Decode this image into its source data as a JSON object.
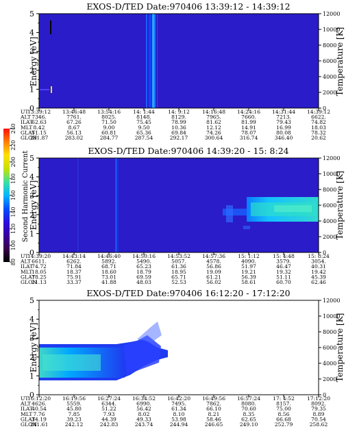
{
  "colorbar": {
    "label": "Second Harmonic Current",
    "ticks": [
      "80",
      "100",
      "120",
      "140",
      "160",
      "180",
      "200",
      "220",
      "240"
    ],
    "colors": [
      "#000000",
      "#3a0050",
      "#3a00a0",
      "#2a10e0",
      "#0050ff",
      "#00b8ff",
      "#3fe0a0",
      "#c8e000",
      "#ffe000",
      "#ff8000",
      "#ff1000"
    ]
  },
  "left_axis_label": "Energy [eV]",
  "right_axis_label": "Temperature [K]",
  "row_labels": [
    "UT",
    "ALT",
    "ILAT",
    "MLT",
    "GLAT",
    "GLON"
  ],
  "panels": [
    {
      "title": "EXOS-D/TED   Date:970406   13:39:12 - 14:39:12",
      "row_values": [
        [
          "13:39:12",
          "13:46:48",
          "13:54:16",
          "14: 1:44",
          "14: 9:12",
          "14:16:48",
          "14:24:16",
          "14:31:44",
          "14:39:12"
        ],
        [
          "7346.",
          "7761.",
          "8025.",
          "8148.",
          "8129.",
          "7965.",
          "7660.",
          "7213.",
          "6622."
        ],
        [
          "62.63",
          "67.26",
          "71.50",
          "75.45",
          "78.99",
          "81.62",
          "81.99",
          "79.43",
          "74.82"
        ],
        [
          "8.42",
          "8.67",
          "9.00",
          "9.50",
          "10.36",
          "12.12",
          "14.91",
          "16.99",
          "18.03"
        ],
        [
          "51.15",
          "56.13",
          "60.81",
          "65.36",
          "69.84",
          "74.26",
          "78.07",
          "80.08",
          "78.32"
        ],
        [
          "281.87",
          "283.02",
          "284.77",
          "287.54",
          "292.17",
          "300.64",
          "316.74",
          "346.40",
          "20.62"
        ]
      ]
    },
    {
      "title": "EXOS-D/TED   Date:970406   14:39:20 - 15: 8:24",
      "row_values": [
        [
          "14:39:20",
          "14:43:14",
          "14:46:40",
          "14:50:16",
          "14:53:52",
          "14:57:36",
          "15: 1:12",
          "15: 4:48",
          "15: 8:24"
        ],
        [
          "6611.",
          "6262.",
          "5892.",
          "5490.",
          "5057.",
          "4578.",
          "4090.",
          "3579.",
          "3054."
        ],
        [
          "74.72",
          "71.84",
          "68.71",
          "65.23",
          "61.36",
          "56.86",
          "51.97",
          "46.47",
          "40.31"
        ],
        [
          "18.05",
          "18.37",
          "18.60",
          "18.79",
          "18.95",
          "19.09",
          "19.21",
          "19.32",
          "19.42"
        ],
        [
          "78.25",
          "75.91",
          "73.01",
          "69.59",
          "65.71",
          "61.21",
          "56.39",
          "51.11",
          "45.39"
        ],
        [
          "21.13",
          "33.37",
          "41.88",
          "48.03",
          "52.53",
          "56.02",
          "58.61",
          "60.70",
          "62.46"
        ]
      ]
    },
    {
      "title": "EXOS-D/TED   Date:970406   16:12:20 - 17:12:20",
      "row_values": [
        [
          "16:12:20",
          "16:19:56",
          "16:27:24",
          "16:34:52",
          "16:42:20",
          "16:49:56",
          "16:57:24",
          "17: 4:52",
          "17:12:20"
        ],
        [
          "4626.",
          "5559.",
          "6344.",
          "6990.",
          "7495.",
          "7862.",
          "8080.",
          "8157.",
          "8092."
        ],
        [
          "40.54",
          "45.80",
          "51.22",
          "56.42",
          "61.34",
          "66.10",
          "70.60",
          "75.00",
          "79.35"
        ],
        [
          "7.76",
          "7.85",
          "7.93",
          "8.02",
          "8.10",
          "8.21",
          "8.35",
          "8.56",
          "8.89"
        ],
        [
          "34.19",
          "39.23",
          "44.39",
          "49.33",
          "53.98",
          "58.46",
          "62.65",
          "66.68",
          "70.54"
        ],
        [
          "241.61",
          "242.12",
          "242.83",
          "243.74",
          "244.94",
          "246.65",
          "249.10",
          "252.79",
          "258.62"
        ]
      ]
    }
  ],
  "chart_data": {
    "type": "heatmap",
    "y_left": {
      "label": "Energy [eV]",
      "range": [
        0,
        5
      ],
      "ticks": [
        "0",
        "1",
        "2",
        "3",
        "4",
        "5"
      ]
    },
    "y_right": {
      "label": "Temperature [K]",
      "range": [
        0,
        12000
      ],
      "ticks": [
        "0",
        "2000",
        "4000",
        "6000",
        "8000",
        "10000",
        "12000"
      ]
    },
    "color_scale": {
      "label": "Second Harmonic Current",
      "range": [
        80,
        240
      ]
    }
  }
}
